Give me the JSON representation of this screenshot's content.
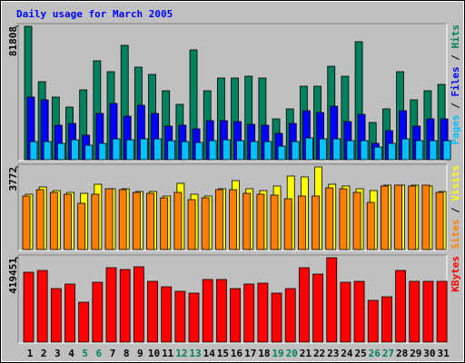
{
  "chart_data": [
    {
      "type": "bar",
      "title": "Daily usage for March 2005",
      "categories": [
        1,
        2,
        3,
        4,
        5,
        6,
        7,
        8,
        9,
        10,
        11,
        12,
        13,
        14,
        15,
        16,
        17,
        18,
        19,
        20,
        21,
        22,
        23,
        24,
        25,
        26,
        27,
        28,
        29,
        30,
        31
      ],
      "highlight_categories": [
        5,
        6,
        12,
        13,
        19,
        20,
        26,
        27
      ],
      "highlight_color": "#00805c",
      "legend_separator": " / ",
      "ylim": [
        0,
        81808
      ],
      "yticks": [
        81808
      ],
      "series": [
        {
          "name": "Pages",
          "color": "#00c0ff",
          "values": [
            11130,
            11130,
            10020,
            12240,
            8900,
            10020,
            12800,
            12240,
            12800,
            12800,
            11690,
            11130,
            10570,
            11690,
            12240,
            11690,
            11130,
            11130,
            8350,
            11130,
            13360,
            12800,
            12800,
            11690,
            11690,
            7790,
            10020,
            12800,
            11690,
            11690,
            11690
          ]
        },
        {
          "name": "Files",
          "color": "#0000ff",
          "values": [
            38400,
            36730,
            21150,
            22260,
            15030,
            28380,
            34500,
            26710,
            33390,
            28380,
            20590,
            21150,
            18920,
            23930,
            23930,
            23370,
            21700,
            21150,
            16140,
            22260,
            30050,
            28940,
            32830,
            23370,
            27830,
            10020,
            17810,
            30050,
            20590,
            25040,
            25040
          ]
        },
        {
          "name": "Hits",
          "color": "#00805c",
          "values": [
            81808,
            47862,
            38400,
            32280,
            42850,
            60660,
            53980,
            70120,
            56770,
            52310,
            42300,
            33950,
            67340,
            42300,
            50090,
            50090,
            51200,
            50090,
            25040,
            31170,
            45080,
            45080,
            57320,
            51200,
            72350,
            22820,
            31170,
            53980,
            36730,
            42300,
            46190
          ]
        }
      ]
    },
    {
      "type": "bar",
      "legend_separator": " / ",
      "ylim": [
        0,
        3772
      ],
      "yticks": [
        3772
      ],
      "series": [
        {
          "name": "Sites",
          "color": "#ff8000",
          "values": [
            2446,
            2736,
            2611,
            2528,
            2114,
            2528,
            2777,
            2736,
            2611,
            2570,
            2363,
            2611,
            2280,
            2363,
            2736,
            2736,
            2570,
            2528,
            2487,
            2321,
            2446,
            2446,
            2819,
            2777,
            2611,
            2155,
            2902,
            2943,
            2902,
            2943,
            2611
          ]
        },
        {
          "name": "Visits",
          "color": "#ffff00",
          "values": [
            2528,
            2860,
            2694,
            2611,
            2570,
            2984,
            2777,
            2777,
            2653,
            2653,
            2446,
            3026,
            2528,
            2446,
            2777,
            3150,
            2777,
            2694,
            2902,
            3357,
            3316,
            3772,
            2984,
            2902,
            2777,
            2694,
            2943,
            2943,
            2943,
            2902,
            2653
          ]
        }
      ]
    },
    {
      "type": "bar",
      "ylim": [
        0,
        419451
      ],
      "yticks": [
        419451
      ],
      "series": [
        {
          "name": "KBytes",
          "color": "#ff0000",
          "values": [
            347270,
            356290,
            266090,
            288640,
            198440,
            297660,
            369820,
            360800,
            374330,
            302170,
            275110,
            252560,
            243540,
            311190,
            311190,
            266090,
            288640,
            293150,
            243540,
            266090,
            369820,
            338250,
            419451,
            297660,
            302170,
            207460,
            225500,
            356290,
            302170,
            302170,
            302170
          ]
        }
      ]
    }
  ]
}
